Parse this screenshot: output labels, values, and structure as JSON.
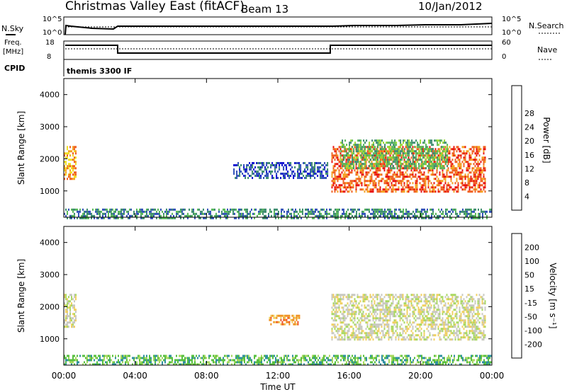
{
  "header": {
    "title": "Christmas Valley East (fitACF)",
    "beam": "Beam 13",
    "date": "10/Jan/2012"
  },
  "top_panel": {
    "nsky_label": "N.Sky",
    "nsearch_label": "N.Search",
    "freq_label": "Freq.",
    "freq_unit": "[MHz]",
    "nave_label": "Nave",
    "cpid_label": "CPID",
    "cpid_value": "themis 3300 IF",
    "noise_left_ticks": [
      "10^5",
      "10^0"
    ],
    "noise_right_ticks": [
      "10^5",
      "10^0"
    ],
    "freq_left_ticks": [
      "18",
      "8"
    ],
    "freq_right_ticks": [
      "60",
      "0"
    ]
  },
  "chart_data": [
    {
      "type": "heatmap",
      "name": "power",
      "ylabel": "Slant Range [km]",
      "xlabel": "",
      "ylim": [
        180,
        4500
      ],
      "xlim_hours": [
        0,
        24
      ],
      "yticks": [
        1000,
        2000,
        3000,
        4000
      ],
      "colorbar_label": "Power [dB]",
      "colorbar_ticks": [
        "4",
        "8",
        "12",
        "16",
        "20",
        "24",
        "28"
      ],
      "colorbar_colors": [
        "#1010d0",
        "#3050b8",
        "#3c8c6e",
        "#58b858",
        "#98d830",
        "#f0e020",
        "#f5a020",
        "#f06020",
        "#e81010"
      ],
      "regions": [
        {
          "t": [
            0.0,
            0.7
          ],
          "r": [
            1400,
            2400
          ],
          "level": 6
        },
        {
          "t": [
            15.0,
            23.6
          ],
          "r": [
            1000,
            2400
          ],
          "level": 7
        },
        {
          "t": [
            15.5,
            21.5
          ],
          "r": [
            1700,
            2600
          ],
          "level": 3
        },
        {
          "t": [
            9.5,
            14.8
          ],
          "r": [
            1400,
            1900
          ],
          "level": 1
        },
        {
          "t": [
            0.0,
            24.0
          ],
          "r": [
            180,
            450
          ],
          "level": 2
        }
      ]
    },
    {
      "type": "heatmap",
      "name": "velocity",
      "ylabel": "Slant Range [km]",
      "xlabel": "Time UT",
      "ylim": [
        180,
        4500
      ],
      "xlim_hours": [
        0,
        24
      ],
      "yticks": [
        1000,
        2000,
        3000,
        4000
      ],
      "xticks": [
        "00:00",
        "04:00",
        "08:00",
        "12:00",
        "16:00",
        "20:00",
        "00:00"
      ],
      "colorbar_label": "Velocity [m s⁻¹]",
      "colorbar_ticks": [
        "200",
        "100",
        "50",
        "15",
        "-15",
        "-50",
        "-100",
        "-200"
      ],
      "colorbar_colors": [
        "#2030b8",
        "#3090a0",
        "#58c040",
        "#a8d860",
        "#c8c8c0",
        "#f0d060",
        "#f09020",
        "#f05020",
        "#e81010"
      ],
      "regions": [
        {
          "t": [
            0.0,
            0.7
          ],
          "r": [
            1400,
            2400
          ],
          "level": 4
        },
        {
          "t": [
            15.0,
            23.6
          ],
          "r": [
            1000,
            2400
          ],
          "level": 4
        },
        {
          "t": [
            11.5,
            13.2
          ],
          "r": [
            1450,
            1750
          ],
          "level": 6
        },
        {
          "t": [
            0.0,
            24.0
          ],
          "r": [
            180,
            500
          ],
          "level": 2
        }
      ]
    }
  ]
}
